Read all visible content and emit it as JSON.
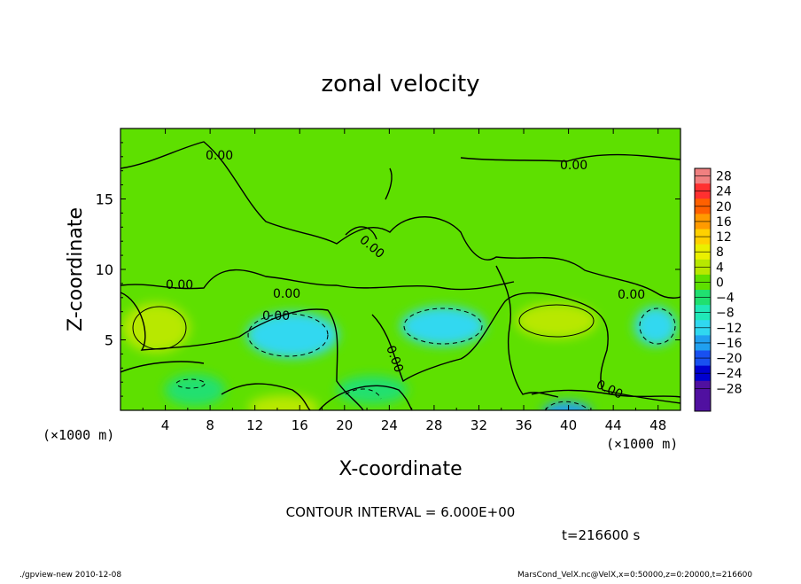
{
  "chart_data": {
    "type": "heatmap",
    "title": "zonal velocity",
    "xlabel": "X-coordinate",
    "ylabel": "Z-coordinate",
    "x_unit": "(×1000 m)",
    "y_unit": "(×1000 m)",
    "xlim": [
      0,
      50
    ],
    "ylim": [
      0,
      20
    ],
    "x_ticks": [
      "4",
      "8",
      "12",
      "16",
      "20",
      "24",
      "28",
      "32",
      "36",
      "40",
      "44",
      "48"
    ],
    "y_ticks": [
      "5",
      "10",
      "15"
    ],
    "contour_label": "0.00",
    "contour_interval_text": "CONTOUR INTERVAL = 6.000E+00",
    "time_text": "t=216600 s",
    "footer_left": "./gpview-new   2010-12-08",
    "footer_right": "MarsCond_VelX.nc@VelX,x=0:50000,z=0:20000,t=216600",
    "colorbar": {
      "levels": [
        "28",
        "24",
        "20",
        "16",
        "12",
        "8",
        "4",
        "0",
        "-4",
        "-8",
        "-12",
        "-16",
        "-20",
        "-24",
        "-28"
      ],
      "colors": [
        "#f08080",
        "#ff3030",
        "#ff6000",
        "#ff9a00",
        "#ffd000",
        "#eaf000",
        "#b8e800",
        "#5ee000",
        "#20e070",
        "#20e8b8",
        "#30d8f0",
        "#20a0f0",
        "#1850f0",
        "#0000d0",
        "#5010a0"
      ]
    },
    "features": [
      {
        "kind": "positive",
        "x": 3,
        "z": 6
      },
      {
        "kind": "negative",
        "x": 15,
        "z": 5.2
      },
      {
        "kind": "negative",
        "x": 29,
        "z": 6
      },
      {
        "kind": "positive",
        "x": 39,
        "z": 6.6
      },
      {
        "kind": "negative",
        "x": 47,
        "z": 6
      },
      {
        "kind": "negative",
        "x": 39.5,
        "z": 0.3
      }
    ]
  }
}
